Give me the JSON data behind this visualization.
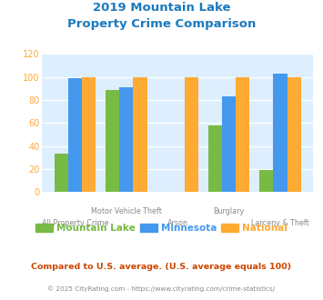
{
  "title_line1": "2019 Mountain Lake",
  "title_line2": "Property Crime Comparison",
  "title_color": "#1a7abf",
  "categories": [
    "All Property Crime",
    "Motor Vehicle Theft",
    "Arson",
    "Burglary",
    "Larceny & Theft"
  ],
  "x_labels_top": [
    "",
    "Motor Vehicle Theft",
    "",
    "Burglary",
    ""
  ],
  "x_labels_bottom": [
    "All Property Crime",
    "",
    "Arson",
    "",
    "Larceny & Theft"
  ],
  "mountain_lake": [
    33,
    89,
    0,
    58,
    19
  ],
  "minnesota": [
    99,
    91,
    0,
    83,
    103
  ],
  "national": [
    100,
    100,
    100,
    100,
    100
  ],
  "color_mountain_lake": "#77bb44",
  "color_minnesota": "#4499ee",
  "color_national": "#ffaa33",
  "ylim": [
    0,
    120
  ],
  "yticks": [
    0,
    20,
    40,
    60,
    80,
    100,
    120
  ],
  "background_color": "#ddeeff",
  "legend_label_ml": "Mountain Lake",
  "legend_label_mn": "Minnesota",
  "legend_label_nat": "National",
  "footnote1": "Compared to U.S. average. (U.S. average equals 100)",
  "footnote2": "© 2025 CityRating.com - https://www.cityrating.com/crime-statistics/",
  "footnote1_color": "#cc4400",
  "footnote2_color": "#888888",
  "ytick_color": "#ffaa33"
}
